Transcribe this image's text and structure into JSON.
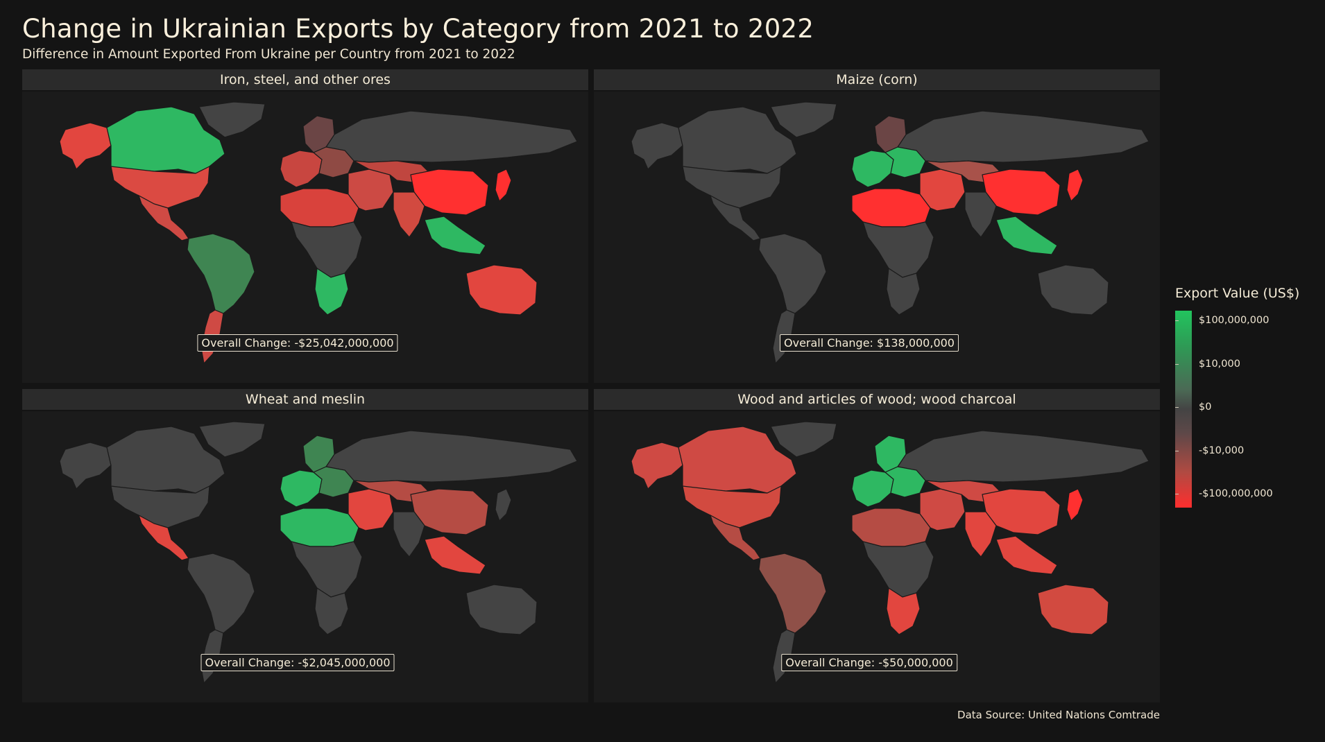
{
  "title": "Change in Ukrainian Exports by Category from 2021 to 2022",
  "subtitle": "Difference in Amount Exported From Ukraine per Country from 2021 to 2022",
  "colors": {
    "background": "#141414",
    "panel": "#1b1b1b",
    "strip": "#2b2b2b",
    "land_neutral": "#444444",
    "increase": "#22c45e",
    "decrease": "#ff2e2e"
  },
  "panels": [
    {
      "category": "Iron, steel, and other ores",
      "overall_label": "Overall Change: -$25,042,000,000",
      "region_fills": {
        "north_america": "#db4a42",
        "canada": "#2eb862",
        "alaska": "#e2463f",
        "greenland": "#444444",
        "central_america": "#cf4a44",
        "south_america": "#3f8552",
        "patagonia": "#cf4a44",
        "europe_west": "#c84640",
        "europe_east": "#8f4a44",
        "scandinavia": "#6b4545",
        "russia": "#444444",
        "africa_north": "#d9423c",
        "africa_central": "#444444",
        "africa_south": "#2eb862",
        "middle_east": "#cc4a44",
        "central_asia": "#c0463f",
        "china": "#ff3030",
        "india": "#d24a40",
        "southeast_asia": "#2eb862",
        "japan": "#ff3030",
        "australia": "#e2463f"
      }
    },
    {
      "category": "Maize (corn)",
      "overall_label": "Overall Change: $138,000,000",
      "region_fills": {
        "north_america": "#444444",
        "canada": "#444444",
        "alaska": "#444444",
        "greenland": "#444444",
        "central_america": "#444444",
        "south_america": "#444444",
        "patagonia": "#444444",
        "europe_west": "#2eb862",
        "europe_east": "#2eb862",
        "scandinavia": "#6b4545",
        "russia": "#444444",
        "africa_north": "#ff3030",
        "africa_central": "#444444",
        "africa_south": "#444444",
        "middle_east": "#e2463f",
        "central_asia": "#a8524a",
        "china": "#ff3030",
        "india": "#444444",
        "southeast_asia": "#2eb862",
        "japan": "#ff3030",
        "australia": "#444444"
      }
    },
    {
      "category": "Wheat and meslin",
      "overall_label": "Overall Change: -$2,045,000,000",
      "region_fills": {
        "north_america": "#444444",
        "canada": "#444444",
        "alaska": "#444444",
        "greenland": "#444444",
        "central_america": "#e2463f",
        "south_america": "#444444",
        "patagonia": "#444444",
        "europe_west": "#2eb862",
        "europe_east": "#3f8552",
        "scandinavia": "#3f8552",
        "russia": "#444444",
        "africa_north": "#2eb862",
        "africa_central": "#444444",
        "africa_south": "#444444",
        "middle_east": "#e2463f",
        "central_asia": "#b54c44",
        "china": "#b54c44",
        "india": "#444444",
        "southeast_asia": "#e2463f",
        "japan": "#444444",
        "australia": "#444444"
      }
    },
    {
      "category": "Wood and articles of wood; wood charcoal",
      "overall_label": "Overall Change: -$50,000,000",
      "region_fills": {
        "north_america": "#d24a40",
        "canada": "#cf4a44",
        "alaska": "#cf4a44",
        "greenland": "#444444",
        "central_america": "#b54c44",
        "south_america": "#8f5048",
        "patagonia": "#444444",
        "europe_west": "#2eb862",
        "europe_east": "#2eb862",
        "scandinavia": "#2eb862",
        "russia": "#444444",
        "africa_north": "#b54c44",
        "africa_central": "#444444",
        "africa_south": "#e2463f",
        "middle_east": "#cf4a44",
        "central_asia": "#cf4a44",
        "china": "#e2463f",
        "india": "#e2463f",
        "southeast_asia": "#e2463f",
        "japan": "#ff3030",
        "australia": "#d24a40"
      }
    }
  ],
  "legend": {
    "title": "Export Value (US$)",
    "ticks": [
      {
        "label": "$100,000,000",
        "fraction": 0.05
      },
      {
        "label": "$10,000",
        "fraction": 0.27
      },
      {
        "label": "$0",
        "fraction": 0.49
      },
      {
        "label": "-$10,000",
        "fraction": 0.71
      },
      {
        "label": "-$100,000,000",
        "fraction": 0.93
      }
    ]
  },
  "source": "Data Source: United Nations Comtrade"
}
